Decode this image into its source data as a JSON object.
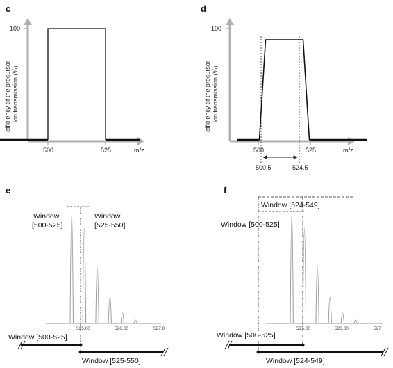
{
  "chart_data": [
    {
      "id": "c",
      "type": "line",
      "panel_label": "c",
      "ylabel_line1": "efficiency of the precursor",
      "ylabel_line2": "ion transmission (%)",
      "xlabel": "m/z",
      "y_ticks": [
        "100"
      ],
      "x_ticks": [
        "500",
        "525"
      ],
      "xlim": [
        478,
        540
      ],
      "ylim": [
        0,
        100
      ],
      "series": [
        {
          "x": [
            478,
            500,
            500,
            525,
            525,
            540
          ],
          "y": [
            0,
            0,
            100,
            100,
            0,
            0
          ]
        }
      ]
    },
    {
      "id": "d",
      "type": "line",
      "panel_label": "d",
      "ylabel_line1": "efficiency of the precursor",
      "ylabel_line2": "ion transmission (%)",
      "xlabel": "m/z",
      "y_ticks": [
        "100"
      ],
      "x_ticks": [
        "500",
        "525"
      ],
      "xlim": [
        490,
        552
      ],
      "ylim": [
        0,
        100
      ],
      "range_labels": [
        "500.5",
        "524.5"
      ],
      "series": [
        {
          "x": [
            490,
            500.5,
            503.5,
            521.5,
            524.5,
            552
          ],
          "y": [
            0,
            0,
            90,
            90,
            0,
            0
          ]
        }
      ]
    },
    {
      "id": "e",
      "type": "line",
      "panel_label": "e",
      "x_ticks": [
        "525.00",
        "526.00",
        "527.0"
      ],
      "xlim": [
        524.25,
        527.1
      ],
      "ylim": [
        0,
        100
      ],
      "window_left_top": [
        "Window",
        "[500-525]"
      ],
      "window_right_top": [
        "Window",
        "[525-550]"
      ],
      "window_bottom_left": "Window [500-525]",
      "window_bottom_right": "Window [525-550]",
      "peaks": [
        {
          "x": 524.75,
          "y": 95
        },
        {
          "x": 525.08,
          "y": 83
        },
        {
          "x": 525.42,
          "y": 50
        },
        {
          "x": 525.75,
          "y": 23
        },
        {
          "x": 526.08,
          "y": 9
        },
        {
          "x": 526.42,
          "y": 3
        }
      ]
    },
    {
      "id": "f",
      "type": "line",
      "panel_label": "f",
      "x_ticks": [
        "525.00",
        "526.00",
        "527"
      ],
      "xlim": [
        524.25,
        527.1
      ],
      "ylim": [
        0,
        100
      ],
      "window_top": "Window [524-549]",
      "window_mid": "Window [500-525]",
      "window_bottom_left": "Window [500-525]",
      "window_bottom_right": "Window [524-549]",
      "peaks": [
        {
          "x": 524.75,
          "y": 95
        },
        {
          "x": 525.08,
          "y": 83
        },
        {
          "x": 525.42,
          "y": 50
        },
        {
          "x": 525.75,
          "y": 23
        },
        {
          "x": 526.08,
          "y": 9
        },
        {
          "x": 526.42,
          "y": 3
        }
      ]
    }
  ]
}
